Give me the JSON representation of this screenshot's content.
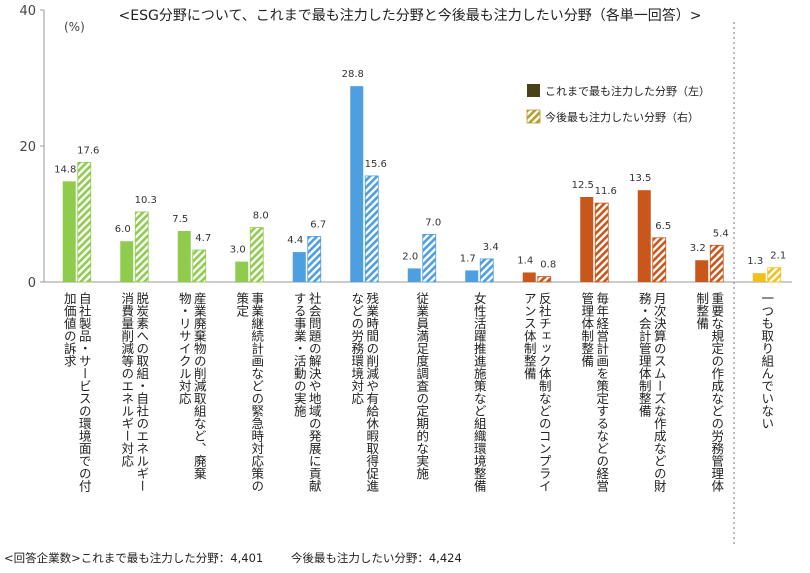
{
  "chart_data": {
    "type": "bar",
    "title": "<ESG分野について、これまで最も注力した分野と今後最も注力したい分野（各単一回答）>",
    "unit_label": "(%)",
    "ylim": [
      0,
      40
    ],
    "yticks": [
      0,
      20,
      40
    ],
    "grid": false,
    "legend_position": "top-right",
    "series": [
      {
        "name": "これまで最も注力した分野（左）",
        "values": [
          14.8,
          6.0,
          7.5,
          3.0,
          4.4,
          28.8,
          2.0,
          1.7,
          1.4,
          12.5,
          13.5,
          3.2,
          1.3
        ]
      },
      {
        "name": "今後最も注力したい分野（右）",
        "values": [
          17.6,
          10.3,
          4.7,
          8.0,
          6.7,
          15.6,
          7.0,
          3.4,
          0.8,
          11.6,
          6.5,
          5.4,
          2.1
        ]
      }
    ],
    "value_labels": {
      "left": [
        "14.8",
        "6.0",
        "7.5",
        "3.0",
        "4.4",
        "28.8",
        "2.0",
        "1.7",
        "1.4",
        "12.5",
        "13.5",
        "3.2",
        "1.3"
      ],
      "right": [
        "17.6",
        "10.3",
        "4.7",
        "8.0",
        "6.7",
        "15.6",
        "7.0",
        "3.4",
        "0.8",
        "11.6",
        "6.5",
        "5.4",
        "2.1"
      ]
    },
    "categories": [
      {
        "lines": [
          "自社製品・サービスの環境面での付",
          "加価値の訴求"
        ],
        "group": "environment"
      },
      {
        "lines": [
          "脱炭素への取組・自社のエネルギー",
          "消費量削減等のエネルギー対応"
        ],
        "group": "environment"
      },
      {
        "lines": [
          "産業廃棄物の削減取組など、廃棄",
          "物・リサイクル対応"
        ],
        "group": "environment"
      },
      {
        "lines": [
          "事業継続計画などの緊急時対応策の",
          "策定"
        ],
        "group": "environment"
      },
      {
        "lines": [
          "社会問題の解決や地域の発展に貢献",
          "する事業・活動の実施"
        ],
        "group": "social"
      },
      {
        "lines": [
          "残業時間の削減や有給休暇取得促進",
          "などの労務環境対応"
        ],
        "group": "social"
      },
      {
        "lines": [
          "従業員満足度調査の定期的な実施"
        ],
        "group": "social"
      },
      {
        "lines": [
          "女性活躍推進施策など組織環境整備"
        ],
        "group": "social"
      },
      {
        "lines": [
          "反社チェック体制などのコンプライ",
          "アンス体制整備"
        ],
        "group": "governance"
      },
      {
        "lines": [
          "毎年経営計画を策定するなどの経営",
          "管理体制整備"
        ],
        "group": "governance"
      },
      {
        "lines": [
          "月次決算のスムーズな作成などの財",
          "務・会計管理体制整備"
        ],
        "group": "governance"
      },
      {
        "lines": [
          "重要な規定の作成などの労務管理体",
          "制整備"
        ],
        "group": "governance"
      },
      {
        "lines": [
          "一つも取り組んでいない"
        ],
        "group": "none"
      }
    ],
    "colors": {
      "environment": "#8fcc4e",
      "social": "#4e9fe0",
      "governance": "#c9571b",
      "none": "#f2c01e",
      "legend_solid": "#4a4216",
      "legend_hatch": "#b59d2a",
      "axis": "#999999"
    }
  },
  "footnote": {
    "prefix": "<回答企業数>",
    "left": "これまで最も注力した分野：4,401",
    "right": "今後最も注力したい分野：4,424"
  }
}
